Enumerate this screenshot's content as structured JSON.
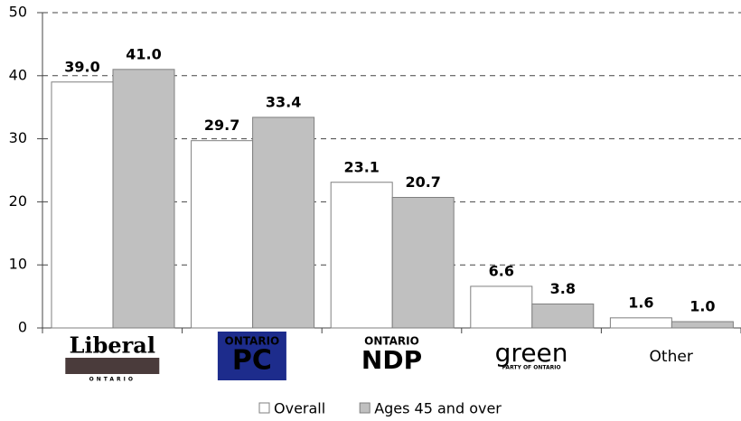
{
  "chart_data": {
    "type": "bar",
    "categories": [
      "Liberal",
      "PC",
      "NDP",
      "green",
      "Other"
    ],
    "category_subtexts": [
      "ONTARIO",
      "ONTARIO",
      "ONTARIO",
      "PARTY OF ONTARIO",
      null
    ],
    "series": [
      {
        "name": "Overall",
        "color": "#ffffff",
        "values": [
          39,
          29.7,
          23.1,
          6.6,
          1.6
        ],
        "value_labels": [
          "39.0",
          "29.7",
          "23.1",
          "6.6",
          "1.6"
        ]
      },
      {
        "name": "Ages 45 and over",
        "color": "#c0c0c0",
        "values": [
          41,
          33.4,
          20.7,
          3.8,
          1
        ],
        "value_labels": [
          "41.0",
          "33.4",
          "20.7",
          "3.8",
          "1.0"
        ]
      }
    ],
    "ylim": [
      0,
      50
    ],
    "yticks": [
      0,
      10,
      20,
      30,
      40,
      50
    ],
    "grid": true
  }
}
